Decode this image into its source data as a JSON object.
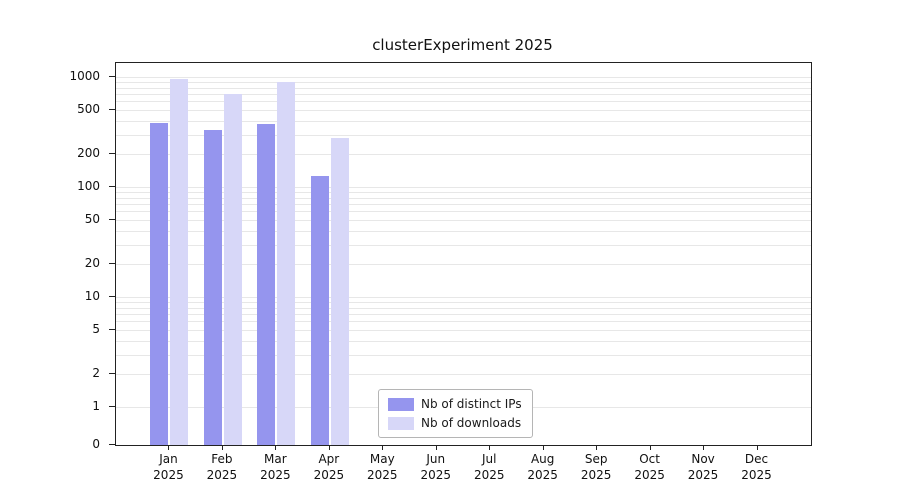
{
  "title": "clusterExperiment 2025",
  "chart_data": {
    "type": "bar",
    "title": "clusterExperiment 2025",
    "categories": [
      "Jan 2025",
      "Feb 2025",
      "Mar 2025",
      "Apr 2025",
      "May 2025",
      "Jun 2025",
      "Jul 2025",
      "Aug 2025",
      "Sep 2025",
      "Oct 2025",
      "Nov 2025",
      "Dec 2025"
    ],
    "series": [
      {
        "name": "Nb of distinct IPs",
        "color": "#9595ee",
        "values": [
          380,
          330,
          375,
          125,
          0,
          0,
          0,
          0,
          0,
          0,
          0,
          0
        ]
      },
      {
        "name": "Nb of downloads",
        "color": "#d7d7f8",
        "values": [
          950,
          700,
          900,
          280,
          0,
          0,
          0,
          0,
          0,
          0,
          0,
          0
        ]
      }
    ],
    "yscale": "symlog",
    "yticks": [
      0,
      1,
      2,
      5,
      10,
      20,
      50,
      100,
      200,
      500,
      1000
    ],
    "ylim": [
      0,
      1100
    ],
    "xlabel": "",
    "ylabel": "",
    "grid": "horizontal-minor",
    "legend_position": "lower-center"
  }
}
